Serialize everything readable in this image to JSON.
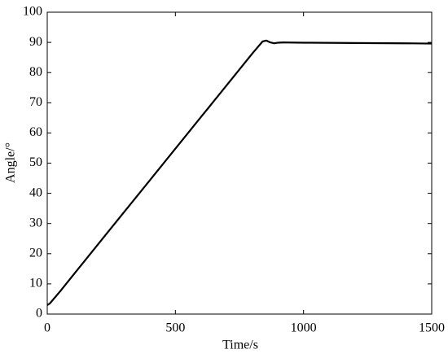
{
  "chart_data": {
    "type": "line",
    "x_label": "Time/s",
    "y_label": "Angle/°",
    "x": [
      0,
      10,
      50,
      100,
      200,
      300,
      400,
      500,
      600,
      700,
      800,
      840,
      855,
      870,
      885,
      900,
      920,
      1000,
      1200,
      1400,
      1500
    ],
    "series": [
      {
        "name": "Angle",
        "color": "#000000",
        "values": [
          3,
          3.5,
          7.5,
          12.8,
          23.3,
          33.8,
          44.3,
          54.8,
          65.3,
          75.8,
          86.3,
          90.3,
          90.6,
          90.0,
          89.7,
          89.9,
          90.0,
          89.9,
          89.8,
          89.7,
          89.6
        ]
      }
    ],
    "xlim": [
      0,
      1500
    ],
    "xticks": [
      0,
      500,
      1000,
      1500
    ],
    "ylim": [
      0,
      100
    ],
    "yticks": [
      0,
      10,
      20,
      30,
      40,
      50,
      60,
      70,
      80,
      90,
      100
    ],
    "grid": false
  }
}
